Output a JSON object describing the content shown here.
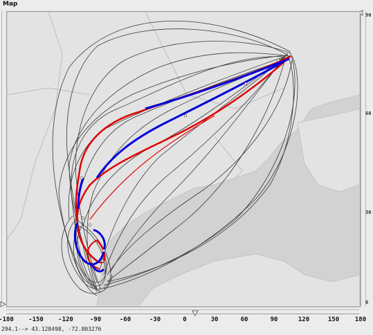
{
  "panel": {
    "title": "Map"
  },
  "left_slider": {
    "top_label": "1",
    "bottom_label": "9"
  },
  "right_slider": {
    "top_label": "90",
    "mid_label_1": "60",
    "mid_label_2": "30",
    "bottom_label": "0"
  },
  "x_axis": {
    "ticks": [
      "-180",
      "-150",
      "-120",
      "-90",
      "-60",
      "-30",
      "0",
      "30",
      "60",
      "90",
      "120",
      "150",
      "180"
    ]
  },
  "status": {
    "text": "294.1--> 43.128498, -72.803276"
  },
  "colors": {
    "water": "#d6d6d6",
    "land": "#e4e4e4",
    "tracks": "#1a1a1a",
    "route_red": "#e00000",
    "route_blue": "#0000dd"
  }
}
